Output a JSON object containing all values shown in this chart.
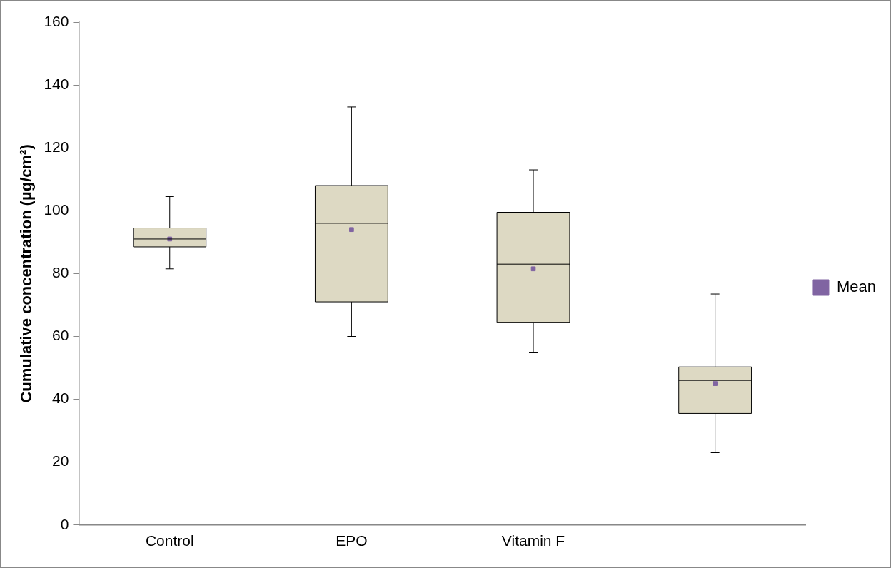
{
  "chart_data": {
    "type": "box",
    "ylabel": "Cumulative concentration (µg/cm²)",
    "categories": [
      "Control",
      "EPO",
      "Vitamin F",
      null
    ],
    "color": "#ddd9c3",
    "boxes": [
      {
        "low": 81.5,
        "q1": 88.5,
        "median": 91,
        "q3": 94.5,
        "high": 104.5
      },
      {
        "low": 60,
        "q1": 71,
        "median": 96,
        "q3": 108,
        "high": 133
      },
      {
        "low": 55,
        "q1": 64.5,
        "median": 83,
        "q3": 99.5,
        "high": 113
      },
      {
        "low": 23,
        "q1": 35.5,
        "median": 46,
        "q3": 50.3,
        "high": 73.5
      }
    ],
    "series": [
      {
        "type": "scatter",
        "name": "Mean",
        "color": "#8064a2",
        "values": [
          91,
          94,
          81.5,
          45
        ]
      }
    ],
    "ylim": [
      0,
      160
    ],
    "yticks": [
      0,
      20,
      40,
      60,
      80,
      100,
      120,
      140,
      160
    ],
    "grid": false,
    "legend": "right"
  }
}
